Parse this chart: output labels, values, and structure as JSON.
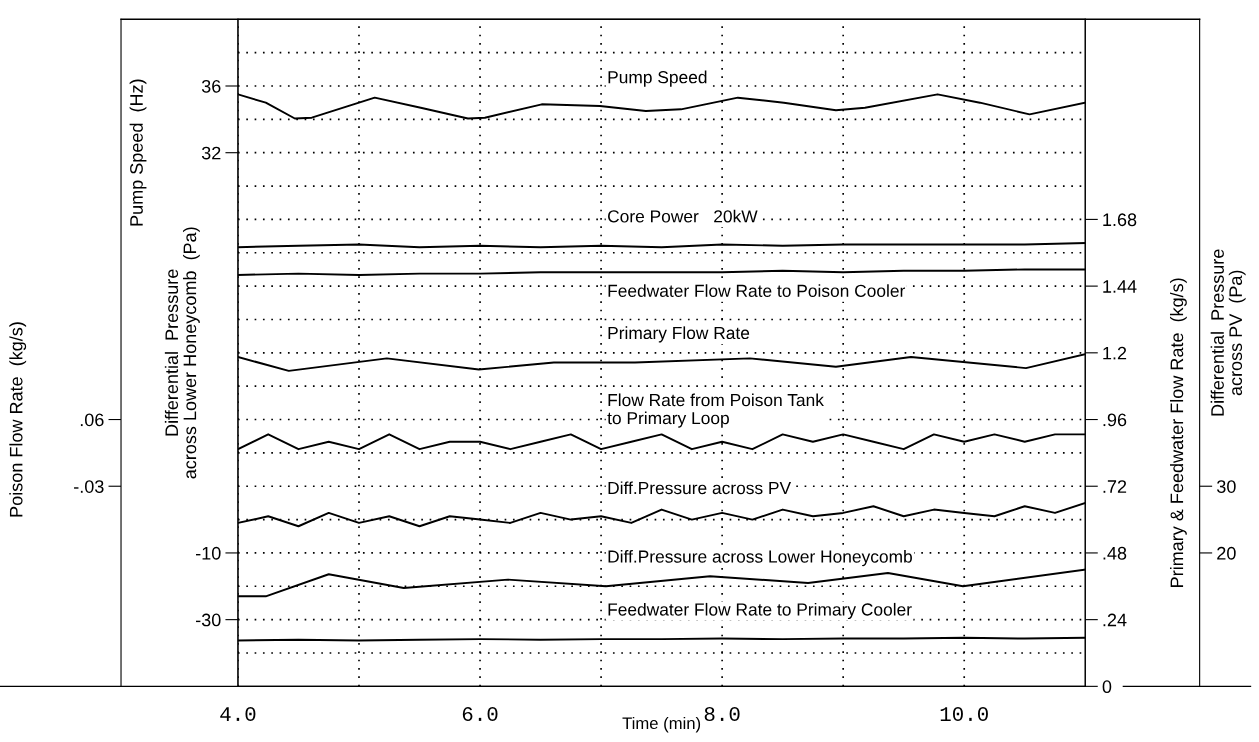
{
  "chart_data": [
    {
      "type": "line",
      "xlabel": "Time (min)",
      "ylabel": "Pump Speed  (Hz)",
      "y2label": "Primary & Feedwater Flow Rate  (kg/s)",
      "y3label": "Differential  Pressure\nacross PV  (Pa)",
      "xlim": [
        4,
        11
      ],
      "xticks": [
        {
          "value": 4,
          "label": "4.0"
        },
        {
          "value": 5,
          "label": null
        },
        {
          "value": 6,
          "label": "6.0"
        },
        {
          "value": 7,
          "label": null
        },
        {
          "value": 8,
          "label": "8.0"
        },
        {
          "value": 9,
          "label": null
        },
        {
          "value": 10,
          "label": "10.0"
        }
      ],
      "ylim": [
        0,
        40
      ],
      "yticks": [
        {
          "value": 2,
          "label": null
        },
        {
          "value": 4,
          "label": null
        },
        {
          "value": 6,
          "label": null
        },
        {
          "value": 8,
          "label": null
        },
        {
          "value": 10,
          "label": null
        },
        {
          "value": 12,
          "label": null
        },
        {
          "value": 14,
          "label": null
        },
        {
          "value": 16,
          "label": null
        },
        {
          "value": 18,
          "label": null
        },
        {
          "value": 20,
          "label": null
        },
        {
          "value": 22,
          "label": null
        },
        {
          "value": 24,
          "label": null
        },
        {
          "value": 26,
          "label": null
        },
        {
          "value": 28,
          "label": null
        },
        {
          "value": 30,
          "label": null
        },
        32,
        {
          "value": 34,
          "label": null
        },
        36,
        {
          "value": 38,
          "label": null
        }
      ],
      "y2lim": [
        0,
        2.4
      ],
      "y2ticks": [
        {
          "value": 1.68,
          "label": "1.68"
        },
        {
          "value": 1.44,
          "label": "1.44"
        },
        {
          "value": 1.2,
          "label": "1.2"
        },
        {
          "value": 0.96,
          "label": ".96"
        },
        {
          "value": 0.72,
          "label": ".72"
        },
        {
          "value": 0.48,
          "label": ".48"
        },
        {
          "value": 0.24,
          "label": ".24"
        },
        0
      ],
      "y3lim": [
        0,
        100
      ],
      "y3ticks": [
        30,
        20
      ],
      "grid": true,
      "series": [
        {
          "name": "Pump Speed",
          "color": "#000000",
          "x": [
            4.0,
            4.23,
            4.47,
            4.61,
            5.13,
            5.51,
            5.9,
            6.04,
            6.51,
            6.99,
            7.37,
            7.66,
            8.13,
            8.51,
            8.94,
            9.18,
            9.78,
            10.13,
            10.54,
            11.0
          ],
          "values": [
            35.5,
            35.0,
            34.05,
            34.1,
            35.3,
            34.7,
            34.05,
            34.1,
            34.9,
            34.8,
            34.5,
            34.6,
            35.3,
            35.0,
            34.55,
            34.7,
            35.5,
            35.0,
            34.3,
            35.0
          ]
        },
        {
          "name": "Core Power   20kW",
          "color": "#000000",
          "axis": "y2",
          "x": [
            4.0,
            4.5,
            5.0,
            5.5,
            6.0,
            6.5,
            7.0,
            7.5,
            8.0,
            8.5,
            9.0,
            9.5,
            10.0,
            10.5,
            11.0
          ],
          "values": [
            1.58,
            1.585,
            1.59,
            1.58,
            1.585,
            1.58,
            1.585,
            1.58,
            1.59,
            1.585,
            1.59,
            1.59,
            1.59,
            1.59,
            1.595
          ]
        },
        {
          "name": "Feedwater Flow Rate to Poison Cooler",
          "color": "#000000",
          "axis": "y2",
          "x": [
            4.0,
            4.5,
            5.0,
            5.5,
            6.0,
            6.5,
            7.0,
            7.5,
            8.0,
            8.5,
            9.0,
            9.5,
            10.0,
            10.5,
            11.0
          ],
          "values": [
            1.48,
            1.485,
            1.48,
            1.485,
            1.485,
            1.49,
            1.49,
            1.49,
            1.49,
            1.495,
            1.49,
            1.495,
            1.495,
            1.5,
            1.5
          ]
        },
        {
          "name": "Primary Flow Rate",
          "color": "#000000",
          "axis": "y2",
          "x": [
            4.0,
            4.42,
            5.23,
            5.99,
            6.61,
            7.28,
            8.23,
            8.94,
            9.56,
            10.51,
            11.0
          ],
          "values": [
            1.185,
            1.135,
            1.18,
            1.14,
            1.165,
            1.165,
            1.18,
            1.15,
            1.185,
            1.145,
            1.195
          ]
        },
        {
          "name": "Diff.Pressure across PV",
          "color": "#000000",
          "axis": "y3",
          "x": [
            4.0,
            4.25,
            4.5,
            4.75,
            5.0,
            5.25,
            5.5,
            5.75,
            6.0,
            6.25,
            6.5,
            6.75,
            7.0,
            7.25,
            7.5,
            7.75,
            8.0,
            8.25,
            8.5,
            8.75,
            9.0,
            9.25,
            9.5,
            9.75,
            10.0,
            10.25,
            10.5,
            10.75,
            11.0
          ],
          "values": [
            24.5,
            25.5,
            24,
            26,
            24.5,
            25.5,
            24,
            25.5,
            25,
            24.5,
            26,
            25,
            25.5,
            24.5,
            26.5,
            25,
            26,
            25,
            26.5,
            25.5,
            26,
            27,
            25.5,
            26.5,
            26,
            25.5,
            27,
            26,
            27.5
          ]
        },
        {
          "name": "Feedwater Flow Rate to Primary Cooler",
          "color": "#000000",
          "axis": "y2",
          "x": [
            4.0,
            4.5,
            5.0,
            5.5,
            6.0,
            6.5,
            7.0,
            7.5,
            8.0,
            8.5,
            9.0,
            9.5,
            10.0,
            10.5,
            11.0
          ],
          "values": [
            0.165,
            0.168,
            0.165,
            0.168,
            0.17,
            0.168,
            0.17,
            0.17,
            0.172,
            0.17,
            0.172,
            0.172,
            0.175,
            0.172,
            0.175
          ]
        }
      ]
    },
    {
      "type": "line",
      "ylabel": "Differential  Pressure\nacross Lower Honeycomb  (Pa)",
      "xlim": [
        4,
        11
      ],
      "ylim": [
        -50,
        150
      ],
      "yticks": [
        -10,
        -30
      ],
      "tick_labels": "y",
      "series": [
        {
          "name": "Diff.Pressure across Lower Honeycomb",
          "color": "#000000",
          "x": [
            4.0,
            4.23,
            4.75,
            5.37,
            6.23,
            7.04,
            7.9,
            8.71,
            9.37,
            9.99,
            11.0
          ],
          "values": [
            -23,
            -23,
            -16.4,
            -20.5,
            -18,
            -20,
            -17,
            -19,
            -16,
            -20,
            -15
          ]
        }
      ]
    },
    {
      "type": "line",
      "ylabel": "Poison Flow Rate  (kg/s)",
      "xlim": [
        4,
        11
      ],
      "ylim": [
        -0.3,
        0.6
      ],
      "yticks": [
        {
          "value": 0.06,
          "label": ".06"
        },
        {
          "value": -0.03,
          "label": "-.03"
        }
      ],
      "tick_labels": "y",
      "series": [
        {
          "name": "Flow Rate from Poison Tank\nto Primary Loop",
          "color": "#000000",
          "x": [
            4.0,
            4.25,
            4.5,
            4.75,
            5.0,
            5.25,
            5.5,
            5.75,
            6.0,
            6.25,
            6.5,
            6.75,
            7.0,
            7.25,
            7.5,
            7.75,
            8.0,
            8.25,
            8.5,
            8.75,
            9.0,
            9.25,
            9.5,
            9.75,
            10.0,
            10.25,
            10.5,
            10.75,
            11.0
          ],
          "values": [
            0.02,
            0.04,
            0.02,
            0.03,
            0.02,
            0.04,
            0.02,
            0.03,
            0.03,
            0.02,
            0.03,
            0.04,
            0.02,
            0.03,
            0.04,
            0.02,
            0.03,
            0.02,
            0.04,
            0.03,
            0.04,
            0.03,
            0.02,
            0.04,
            0.03,
            0.04,
            0.03,
            0.04,
            0.04
          ]
        }
      ]
    }
  ]
}
